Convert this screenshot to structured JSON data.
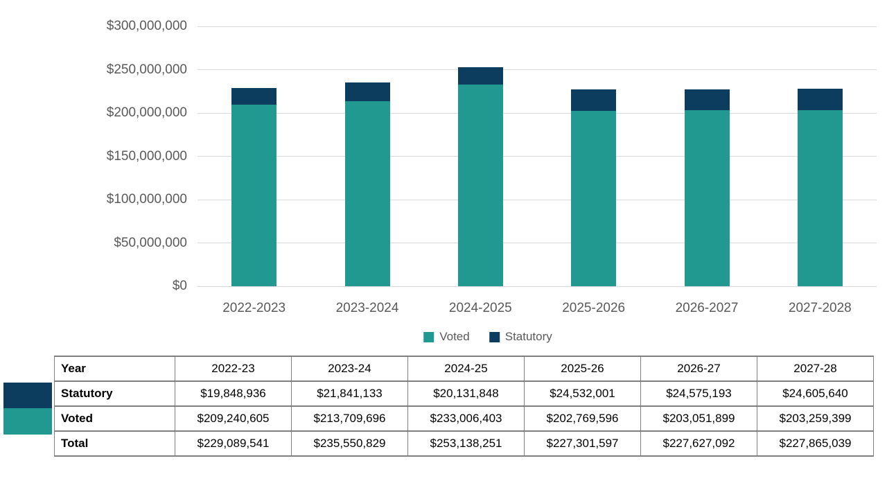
{
  "chart_data": {
    "type": "bar",
    "stacked": true,
    "title": "",
    "xlabel": "",
    "ylabel": "",
    "categories": [
      "2022-2023",
      "2023-2024",
      "2024-2025",
      "2025-2026",
      "2026-2027",
      "2027-2028"
    ],
    "series": [
      {
        "name": "Voted",
        "color": "#219890",
        "values": [
          209240605,
          213709696,
          233006403,
          202769596,
          203051899,
          203259399
        ]
      },
      {
        "name": "Statutory",
        "color": "#0d3d5e",
        "values": [
          19848936,
          21841133,
          20131848,
          24532001,
          24575193,
          24605640
        ]
      }
    ],
    "ylim": [
      0,
      300000000
    ],
    "ytick_step": 50000000,
    "ytick_labels": [
      "$0",
      "$50,000,000",
      "$100,000,000",
      "$150,000,000",
      "$200,000,000",
      "$250,000,000",
      "$300,000,000"
    ],
    "grid": true,
    "legend_position": "bottom",
    "legend": [
      "Voted",
      "Statutory"
    ]
  },
  "table": {
    "header": [
      "Year",
      "2022-23",
      "2023-24",
      "2024-25",
      "2025-26",
      "2026-27",
      "2027-28"
    ],
    "rows": [
      {
        "label": "Statutory",
        "swatch_color": "#0d3d5e",
        "values": [
          "$19,848,936",
          "$21,841,133",
          "$20,131,848",
          "$24,532,001",
          "$24,575,193",
          "$24,605,640"
        ]
      },
      {
        "label": "Voted",
        "swatch_color": "#219890",
        "values": [
          "$209,240,605",
          "$213,709,696",
          "$233,006,403",
          "$202,769,596",
          "$203,051,899",
          "$203,259,399"
        ]
      },
      {
        "label": "Total",
        "swatch_color": null,
        "values": [
          "$229,089,541",
          "$235,550,829",
          "$253,138,251",
          "$227,301,597",
          "$227,627,092",
          "$227,865,039"
        ]
      }
    ]
  },
  "colors": {
    "teal": "#219890",
    "navy": "#0d3d5e",
    "axis_text": "#595959",
    "gridline": "#d9d9d9",
    "table_border": "#7f7f7f"
  }
}
